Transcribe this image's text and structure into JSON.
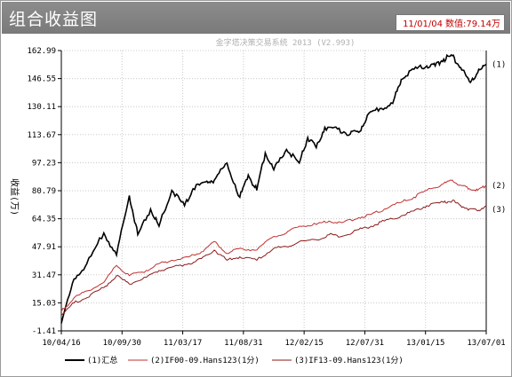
{
  "panel": {
    "title": "组合收益图",
    "readout_date": "11/01/04",
    "readout_label": "数值:",
    "readout_value": "79.14万"
  },
  "chart_data": {
    "type": "line",
    "title": "金字塔决策交易系统 2013 (V2.993)",
    "ylabel": "收益(万)",
    "ylim": [
      -1.41,
      162.99
    ],
    "yticks": [
      "162.99",
      "146.55",
      "130.11",
      "113.67",
      "97.23",
      "80.79",
      "64.35",
      "47.91",
      "31.47",
      "15.03",
      "-1.41"
    ],
    "ytick_values": [
      162.99,
      146.55,
      130.11,
      113.67,
      97.23,
      80.79,
      64.35,
      47.91,
      31.47,
      15.03,
      -1.41
    ],
    "xticks": [
      "10/04/16",
      "10/09/30",
      "11/03/17",
      "11/08/31",
      "12/02/15",
      "12/07/31",
      "13/01/15",
      "13/07/01"
    ],
    "grid": true,
    "legend_position": "bottom",
    "series": [
      {
        "name": "(1)汇总",
        "label": "(1)",
        "color": "#000000",
        "x": [
          0,
          0.03,
          0.06,
          0.1,
          0.13,
          0.16,
          0.18,
          0.21,
          0.23,
          0.26,
          0.29,
          0.31,
          0.34,
          0.36,
          0.39,
          0.42,
          0.44,
          0.46,
          0.48,
          0.5,
          0.53,
          0.56,
          0.58,
          0.6,
          0.62,
          0.65,
          0.68,
          0.7,
          0.72,
          0.75,
          0.78,
          0.8,
          0.83,
          0.86,
          0.88,
          0.9,
          0.92,
          0.94,
          0.96,
          0.98,
          1.0
        ],
        "y": [
          3,
          29,
          38,
          56,
          43,
          78,
          55,
          70,
          60,
          81,
          72,
          82,
          86,
          87,
          97,
          77,
          90,
          81,
          103,
          93,
          105,
          97,
          112,
          106,
          118,
          117,
          114,
          115,
          125,
          129,
          132,
          146,
          152,
          154,
          154,
          158,
          160,
          153,
          145,
          150,
          155
        ]
      },
      {
        "name": "(2)IF00-09.Hans123(1分)",
        "label": "(2)",
        "color": "#c03030",
        "x": [
          0,
          0.03,
          0.06,
          0.1,
          0.13,
          0.16,
          0.2,
          0.23,
          0.26,
          0.3,
          0.33,
          0.36,
          0.39,
          0.42,
          0.46,
          0.5,
          0.53,
          0.56,
          0.6,
          0.63,
          0.66,
          0.7,
          0.73,
          0.76,
          0.8,
          0.83,
          0.86,
          0.9,
          0.92,
          0.94,
          0.96,
          0.98,
          1.0
        ],
        "y": [
          10,
          18,
          22,
          27,
          37,
          31,
          34,
          38,
          40,
          42,
          45,
          51,
          44,
          47,
          46,
          54,
          56,
          60,
          61,
          63,
          62,
          65,
          67,
          70,
          74,
          77,
          81,
          85,
          87,
          84,
          82,
          81,
          84
        ]
      },
      {
        "name": "(3)IF13-09.Hans123(1分)",
        "label": "(3)",
        "color": "#8b1a1a",
        "x": [
          0,
          0.03,
          0.06,
          0.1,
          0.13,
          0.16,
          0.2,
          0.23,
          0.26,
          0.3,
          0.33,
          0.36,
          0.39,
          0.42,
          0.46,
          0.5,
          0.53,
          0.56,
          0.6,
          0.63,
          0.66,
          0.7,
          0.73,
          0.76,
          0.8,
          0.83,
          0.86,
          0.9,
          0.92,
          0.94,
          0.96,
          0.98,
          1.0
        ],
        "y": [
          8,
          15,
          18,
          24,
          31,
          26,
          30,
          34,
          36,
          38,
          41,
          46,
          40,
          42,
          40,
          47,
          48,
          51,
          52,
          55,
          54,
          58,
          60,
          63,
          66,
          69,
          72,
          74,
          75,
          72,
          70,
          69,
          72
        ]
      }
    ]
  }
}
